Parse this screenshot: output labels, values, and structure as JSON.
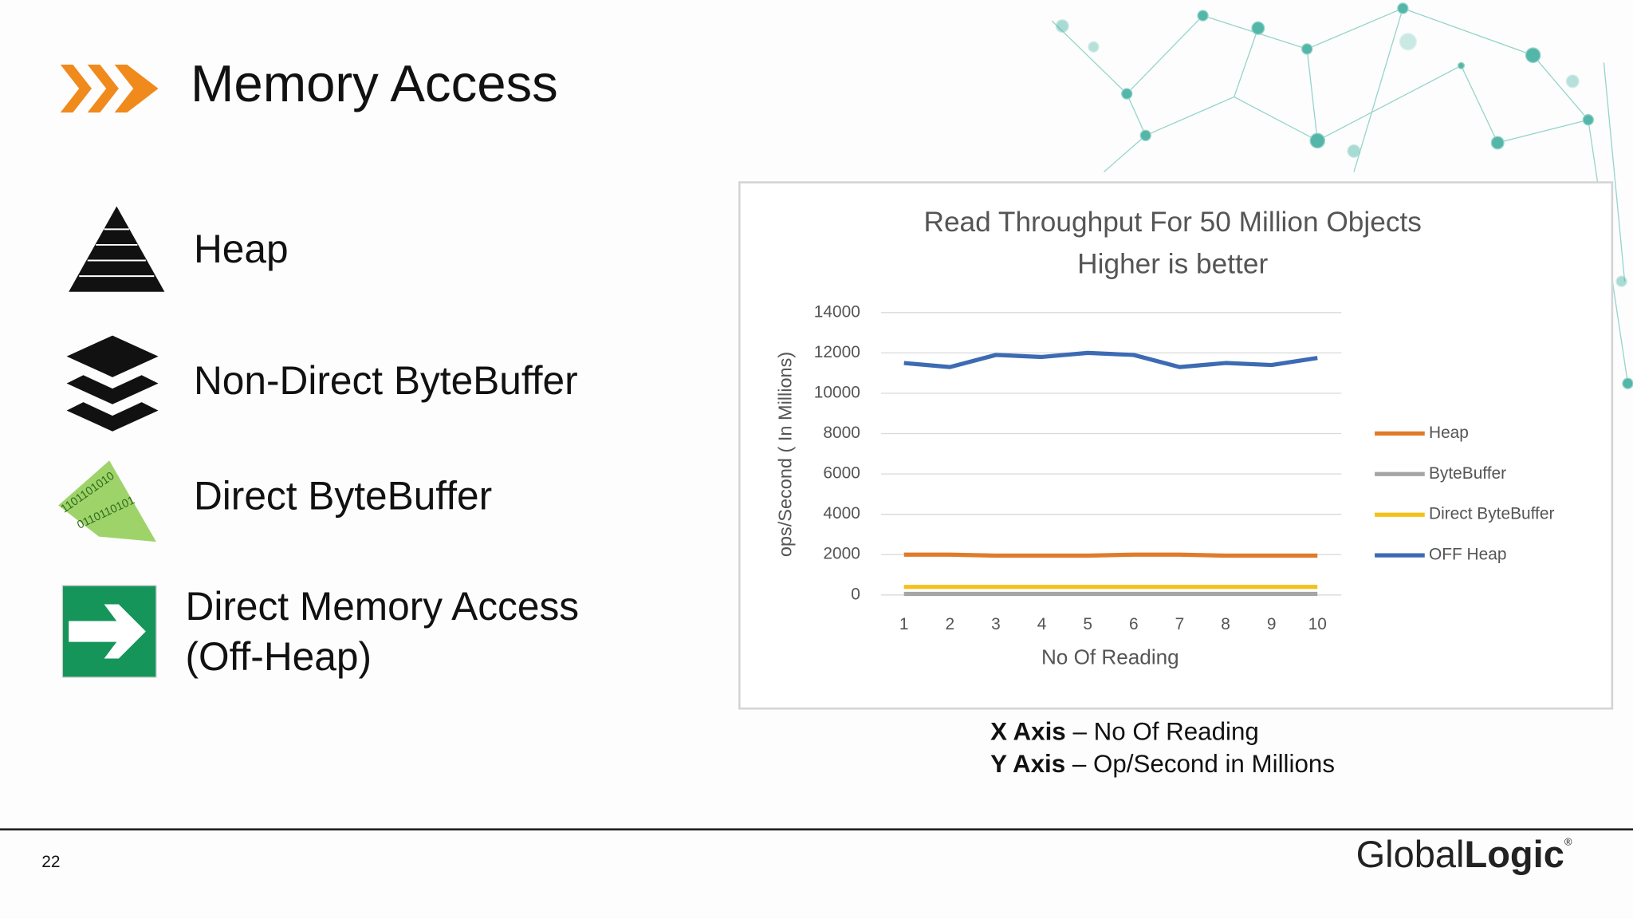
{
  "header": {
    "title": "Memory Access"
  },
  "items": [
    {
      "label": "Heap"
    },
    {
      "label": "Non-Direct ByteBuffer"
    },
    {
      "label": "Direct ByteBuffer"
    },
    {
      "label": "Direct Memory Access",
      "label2": "(Off-Heap)"
    }
  ],
  "chart_data": {
    "type": "line",
    "title": "Read Throughput For 50 Million Objects",
    "subtitle": "Higher is better",
    "x_label": "No Of Reading",
    "y_label": "ops/Second ( In Millions)",
    "categories": [
      "1",
      "2",
      "3",
      "4",
      "5",
      "6",
      "7",
      "8",
      "9",
      "10"
    ],
    "series": [
      {
        "name": "Heap",
        "color": "#e07b2a",
        "values": [
          2000,
          2000,
          1950,
          1950,
          1950,
          2000,
          2000,
          1950,
          1950,
          1950
        ]
      },
      {
        "name": "ByteBuffer",
        "color": "#a5a5a5",
        "values": [
          50,
          50,
          50,
          50,
          50,
          50,
          50,
          50,
          50,
          50
        ]
      },
      {
        "name": "Direct ByteBuffer",
        "color": "#f2c21a",
        "values": [
          400,
          400,
          400,
          400,
          400,
          400,
          400,
          400,
          400,
          400
        ]
      },
      {
        "name": "OFF Heap",
        "color": "#3d6bb3",
        "values": [
          11500,
          11300,
          11900,
          11800,
          12000,
          11900,
          11300,
          11500,
          11400,
          11750
        ]
      }
    ],
    "ylim": [
      0,
      14000
    ],
    "yticks": [
      0,
      2000,
      4000,
      6000,
      8000,
      10000,
      12000,
      14000
    ],
    "grid": true,
    "legend": "right"
  },
  "caption": [
    {
      "key": "X Axis",
      "text": "– No Of Reading"
    },
    {
      "key": "Y Axis",
      "text": "– Op/Second in Millions"
    }
  ],
  "footer": {
    "page": "22",
    "logo_light": "Global",
    "logo_bold": "Logic",
    "logo_mark": "®"
  }
}
